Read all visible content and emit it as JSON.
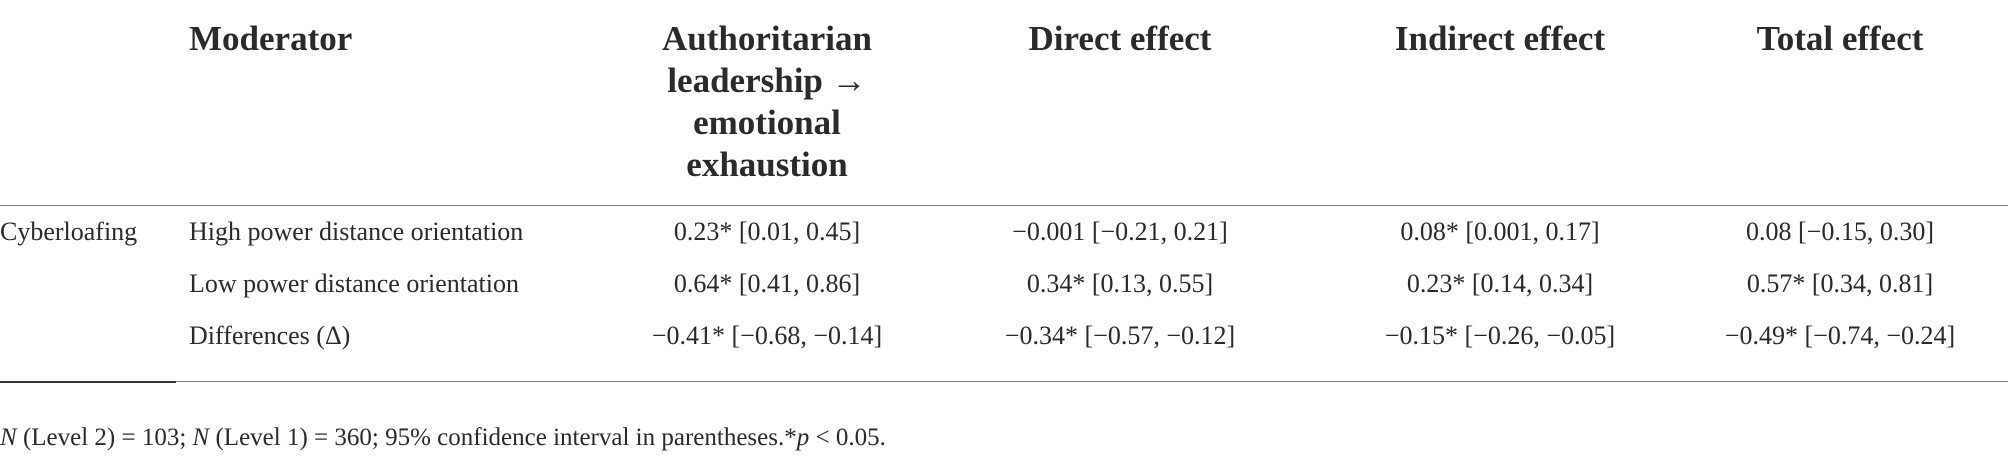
{
  "table": {
    "headers": {
      "moderator": "Moderator",
      "authoritarian": [
        "Authoritarian",
        "leadership →",
        "emotional",
        "exhaustion"
      ],
      "direct": "Direct effect",
      "indirect": "Indirect effect",
      "total": "Total effect"
    },
    "group_label": "Cyberloafing",
    "rows": [
      {
        "moderator": "High power distance orientation",
        "authoritarian": "0.23* [0.01, 0.45]",
        "direct": "−0.001 [−0.21, 0.21]",
        "indirect": "0.08* [0.001, 0.17]",
        "total": "0.08 [−0.15, 0.30]"
      },
      {
        "moderator": "Low power distance orientation",
        "authoritarian": "0.64* [0.41, 0.86]",
        "direct": "0.34* [0.13, 0.55]",
        "indirect": "0.23* [0.14, 0.34]",
        "total": "0.57* [0.34, 0.81]"
      },
      {
        "moderator": "Differences (Δ)",
        "authoritarian": "−0.41* [−0.68, −0.14]",
        "direct": "−0.34* [−0.57, −0.12]",
        "indirect": "−0.15* [−0.26, −0.05]",
        "total": "−0.49* [−0.74, −0.24]"
      }
    ]
  },
  "note": {
    "n_symbol_1": "N",
    "part_1": " (Level 2) = 103; ",
    "n_symbol_2": "N",
    "part_2": " (Level 1) = 360; 95% confidence interval in parentheses.*",
    "p_symbol": "p",
    "part_3": " < 0.05."
  }
}
